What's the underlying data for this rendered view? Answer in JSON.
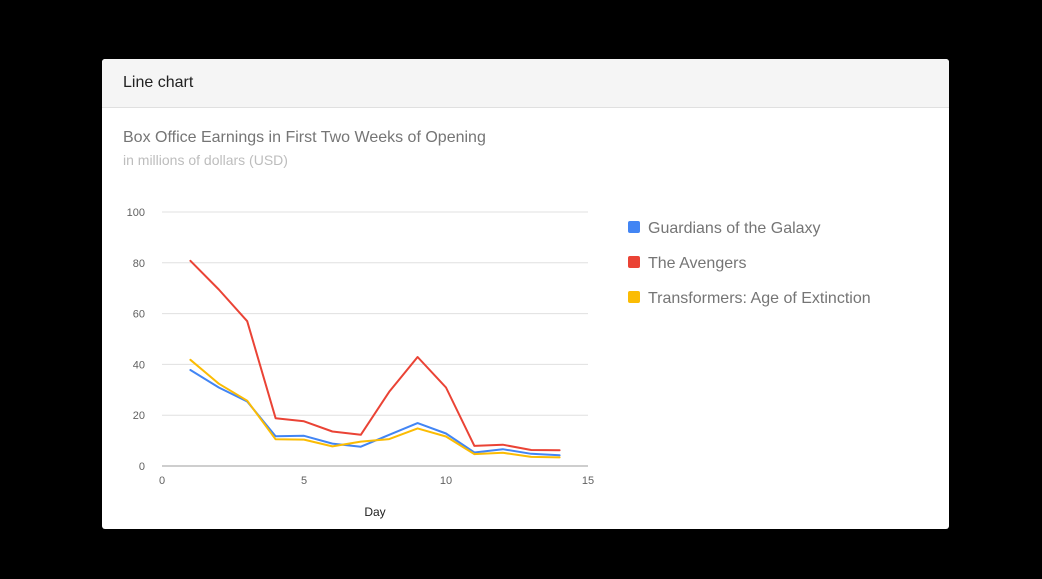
{
  "card": {
    "header": "Line chart"
  },
  "chart_data": {
    "type": "line",
    "title": "Box Office Earnings in First Two Weeks of Opening",
    "subtitle": "in millions of dollars (USD)",
    "xlabel": "Day",
    "ylabel": "",
    "xlim": [
      0,
      15
    ],
    "ylim": [
      0,
      100
    ],
    "xticks": [
      0,
      5,
      10,
      15
    ],
    "yticks": [
      0,
      20,
      40,
      60,
      80,
      100
    ],
    "grid": true,
    "legend_position": "right",
    "x": [
      1,
      2,
      3,
      4,
      5,
      6,
      7,
      8,
      9,
      10,
      11,
      12,
      13,
      14
    ],
    "series": [
      {
        "name": "Guardians of the Galaxy",
        "color": "#4285f4",
        "values": [
          37.8,
          30.9,
          25.4,
          11.7,
          11.9,
          8.8,
          7.6,
          12.3,
          16.9,
          12.8,
          5.3,
          6.6,
          4.8,
          4.2
        ]
      },
      {
        "name": "The Avengers",
        "color": "#ea4335",
        "values": [
          80.8,
          69.5,
          57,
          18.8,
          17.6,
          13.6,
          12.3,
          29.2,
          42.9,
          30.9,
          7.9,
          8.4,
          6.3,
          6.2
        ]
      },
      {
        "name": "Transformers: Age of Extinction",
        "color": "#fbbc04",
        "values": [
          41.8,
          32.4,
          25.7,
          10.5,
          10.4,
          7.7,
          9.6,
          10.6,
          14.8,
          11.6,
          4.7,
          5.2,
          3.6,
          3.4
        ]
      }
    ]
  }
}
